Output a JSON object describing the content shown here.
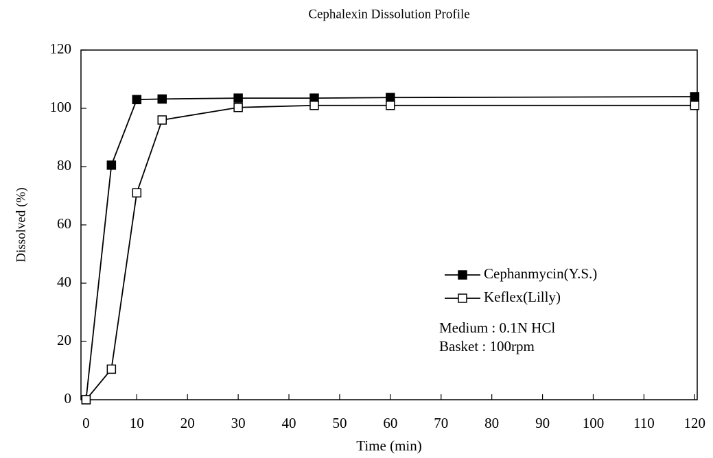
{
  "chart_data": {
    "type": "line",
    "title": "Cephalexin  Dissolution Profile",
    "xlabel": "Time (min)",
    "ylabel": "Dissolved (%)",
    "x": [
      0,
      5,
      10,
      15,
      30,
      45,
      60,
      120
    ],
    "series": [
      {
        "name": "Cephanmycin(Y.S.)",
        "color": "#000000",
        "marker": "square-filled",
        "values": [
          0,
          80.5,
          103,
          103.2,
          103.5,
          103.5,
          103.7,
          104
        ]
      },
      {
        "name": "Keflex(Lilly)",
        "color": "#000000",
        "marker": "square-open",
        "values": [
          0,
          10.5,
          71,
          96,
          100.3,
          101,
          101,
          101
        ]
      }
    ],
    "annotations": [
      "Medium : 0.1N HCl",
      "Basket : 100rpm"
    ],
    "xlim": [
      -1,
      120.5
    ],
    "xticks": [
      0,
      10,
      20,
      30,
      40,
      50,
      60,
      70,
      80,
      90,
      100,
      110,
      120
    ],
    "ylim": [
      0,
      120
    ],
    "yticks": [
      0,
      20,
      40,
      60,
      80,
      100,
      120
    ],
    "grid": false,
    "legend": "right"
  }
}
